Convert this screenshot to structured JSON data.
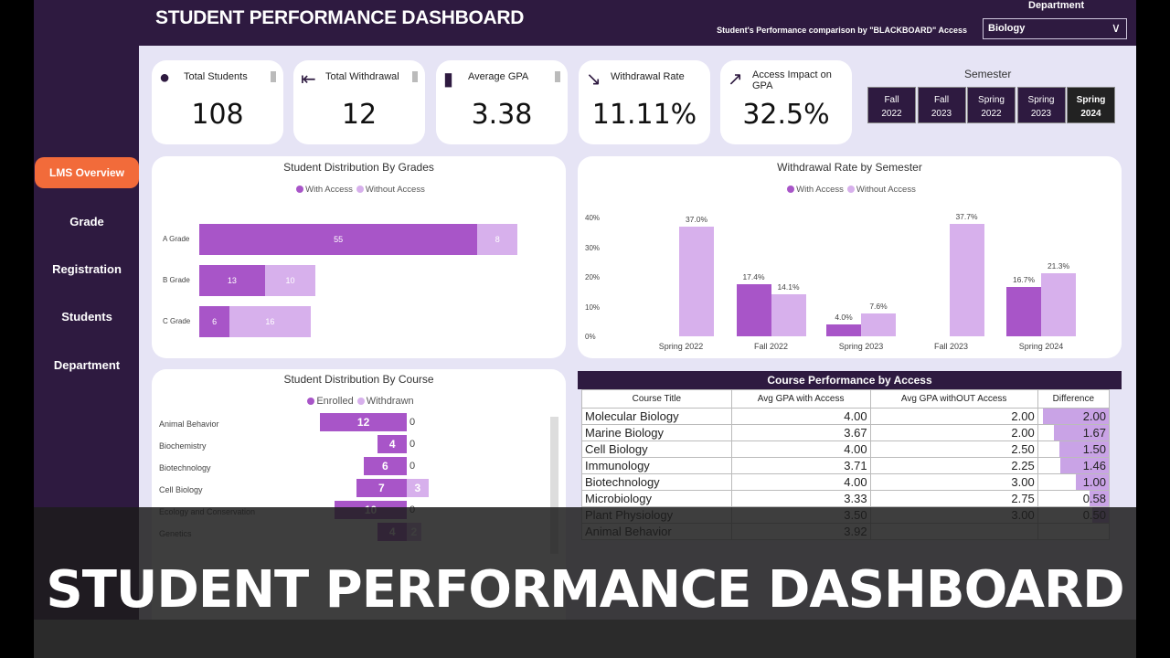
{
  "header": {
    "title": "STUDENT PERFORMANCE DASHBOARD",
    "subtitle": "Student's Performance comparison by \"BLACKBOARD\" Access",
    "department_label": "Department",
    "department_value": "Biology"
  },
  "sidebar": {
    "items": [
      {
        "label": "LMS Overview",
        "active": true
      },
      {
        "label": "Grade"
      },
      {
        "label": "Registration"
      },
      {
        "label": "Students"
      },
      {
        "label": "Department"
      }
    ]
  },
  "kpis": [
    {
      "label": "Total Students",
      "value": "108",
      "icon": "users-icon"
    },
    {
      "label": "Total Withdrawal",
      "value": "12",
      "icon": "exit-icon"
    },
    {
      "label": "Average GPA",
      "value": "3.38",
      "icon": "bar-chart-icon"
    },
    {
      "label": "Withdrawal Rate",
      "value": "11.11%",
      "icon": "trend-down-icon"
    },
    {
      "label": "Access Impact on GPA",
      "value": "32.5%",
      "icon": "trend-up-icon"
    }
  ],
  "semester": {
    "title": "Semester",
    "options": [
      {
        "l1": "Fall",
        "l2": "2022"
      },
      {
        "l1": "Fall",
        "l2": "2023"
      },
      {
        "l1": "Spring",
        "l2": "2022"
      },
      {
        "l1": "Spring",
        "l2": "2023"
      },
      {
        "l1": "Spring",
        "l2": "2024",
        "selected": true
      }
    ]
  },
  "colors": {
    "with": "#a855c8",
    "without": "#d7b0ec",
    "purple": "#2e1a40",
    "accent": "#f26b3a"
  },
  "chart_data": [
    {
      "type": "bar",
      "orientation": "horizontal",
      "stacked": true,
      "title": "Student Distribution By Grades",
      "legend": [
        "With Access",
        "Without Access"
      ],
      "categories": [
        "A Grade",
        "B Grade",
        "C Grade"
      ],
      "series": [
        {
          "name": "With Access",
          "values": [
            55,
            13,
            6
          ]
        },
        {
          "name": "Without Access",
          "values": [
            8,
            10,
            16
          ]
        }
      ]
    },
    {
      "type": "bar",
      "title": "Withdrawal Rate by Semester",
      "legend": [
        "With Access",
        "Without Access"
      ],
      "categories": [
        "Spring 2022",
        "Fall 2022",
        "Spring 2023",
        "Fall 2023",
        "Spring 2024"
      ],
      "yticks": [
        "0%",
        "10%",
        "20%",
        "30%",
        "40%"
      ],
      "ylim": [
        0,
        40
      ],
      "series": [
        {
          "name": "With Access",
          "values": [
            null,
            17.4,
            4.0,
            null,
            16.7
          ],
          "labels": [
            "",
            "17.4%",
            "4.0%",
            "",
            "16.7%"
          ]
        },
        {
          "name": "Without Access",
          "values": [
            37.0,
            14.1,
            7.6,
            37.7,
            21.3
          ],
          "labels": [
            "37.0%",
            "14.1%",
            "7.6%",
            "37.7%",
            "21.3%"
          ]
        }
      ]
    },
    {
      "type": "bar",
      "orientation": "horizontal",
      "title": "Student Distribution By Course",
      "legend": [
        "Enrolled",
        "Withdrawn"
      ],
      "categories": [
        "Animal Behavior",
        "Biochemistry",
        "Biotechnology",
        "Cell Biology",
        "Ecology and Conservation",
        "Genetics"
      ],
      "series": [
        {
          "name": "Enrolled",
          "values": [
            12,
            4,
            6,
            7,
            10,
            4
          ]
        },
        {
          "name": "Withdrawn",
          "values": [
            0,
            0,
            0,
            3,
            0,
            2
          ]
        }
      ]
    }
  ],
  "table": {
    "title": "Course Performance by Access",
    "columns": [
      "Course Title",
      "Avg GPA with Access",
      "Avg GPA withOUT Access",
      "Difference"
    ],
    "rows": [
      [
        "Molecular Biology",
        "4.00",
        "2.00",
        "2.00"
      ],
      [
        "Marine Biology",
        "3.67",
        "2.00",
        "1.67"
      ],
      [
        "Cell Biology",
        "4.00",
        "2.50",
        "1.50"
      ],
      [
        "Immunology",
        "3.71",
        "2.25",
        "1.46"
      ],
      [
        "Biotechnology",
        "4.00",
        "3.00",
        "1.00"
      ],
      [
        "Microbiology",
        "3.33",
        "2.75",
        "0.58"
      ],
      [
        "Plant Physiology",
        "3.50",
        "3.00",
        "0.50"
      ],
      [
        "Animal Behavior",
        "3.92",
        "",
        ""
      ]
    ]
  },
  "banner": {
    "text": "STUDENT PERFORMANCE DASHBOARD"
  }
}
